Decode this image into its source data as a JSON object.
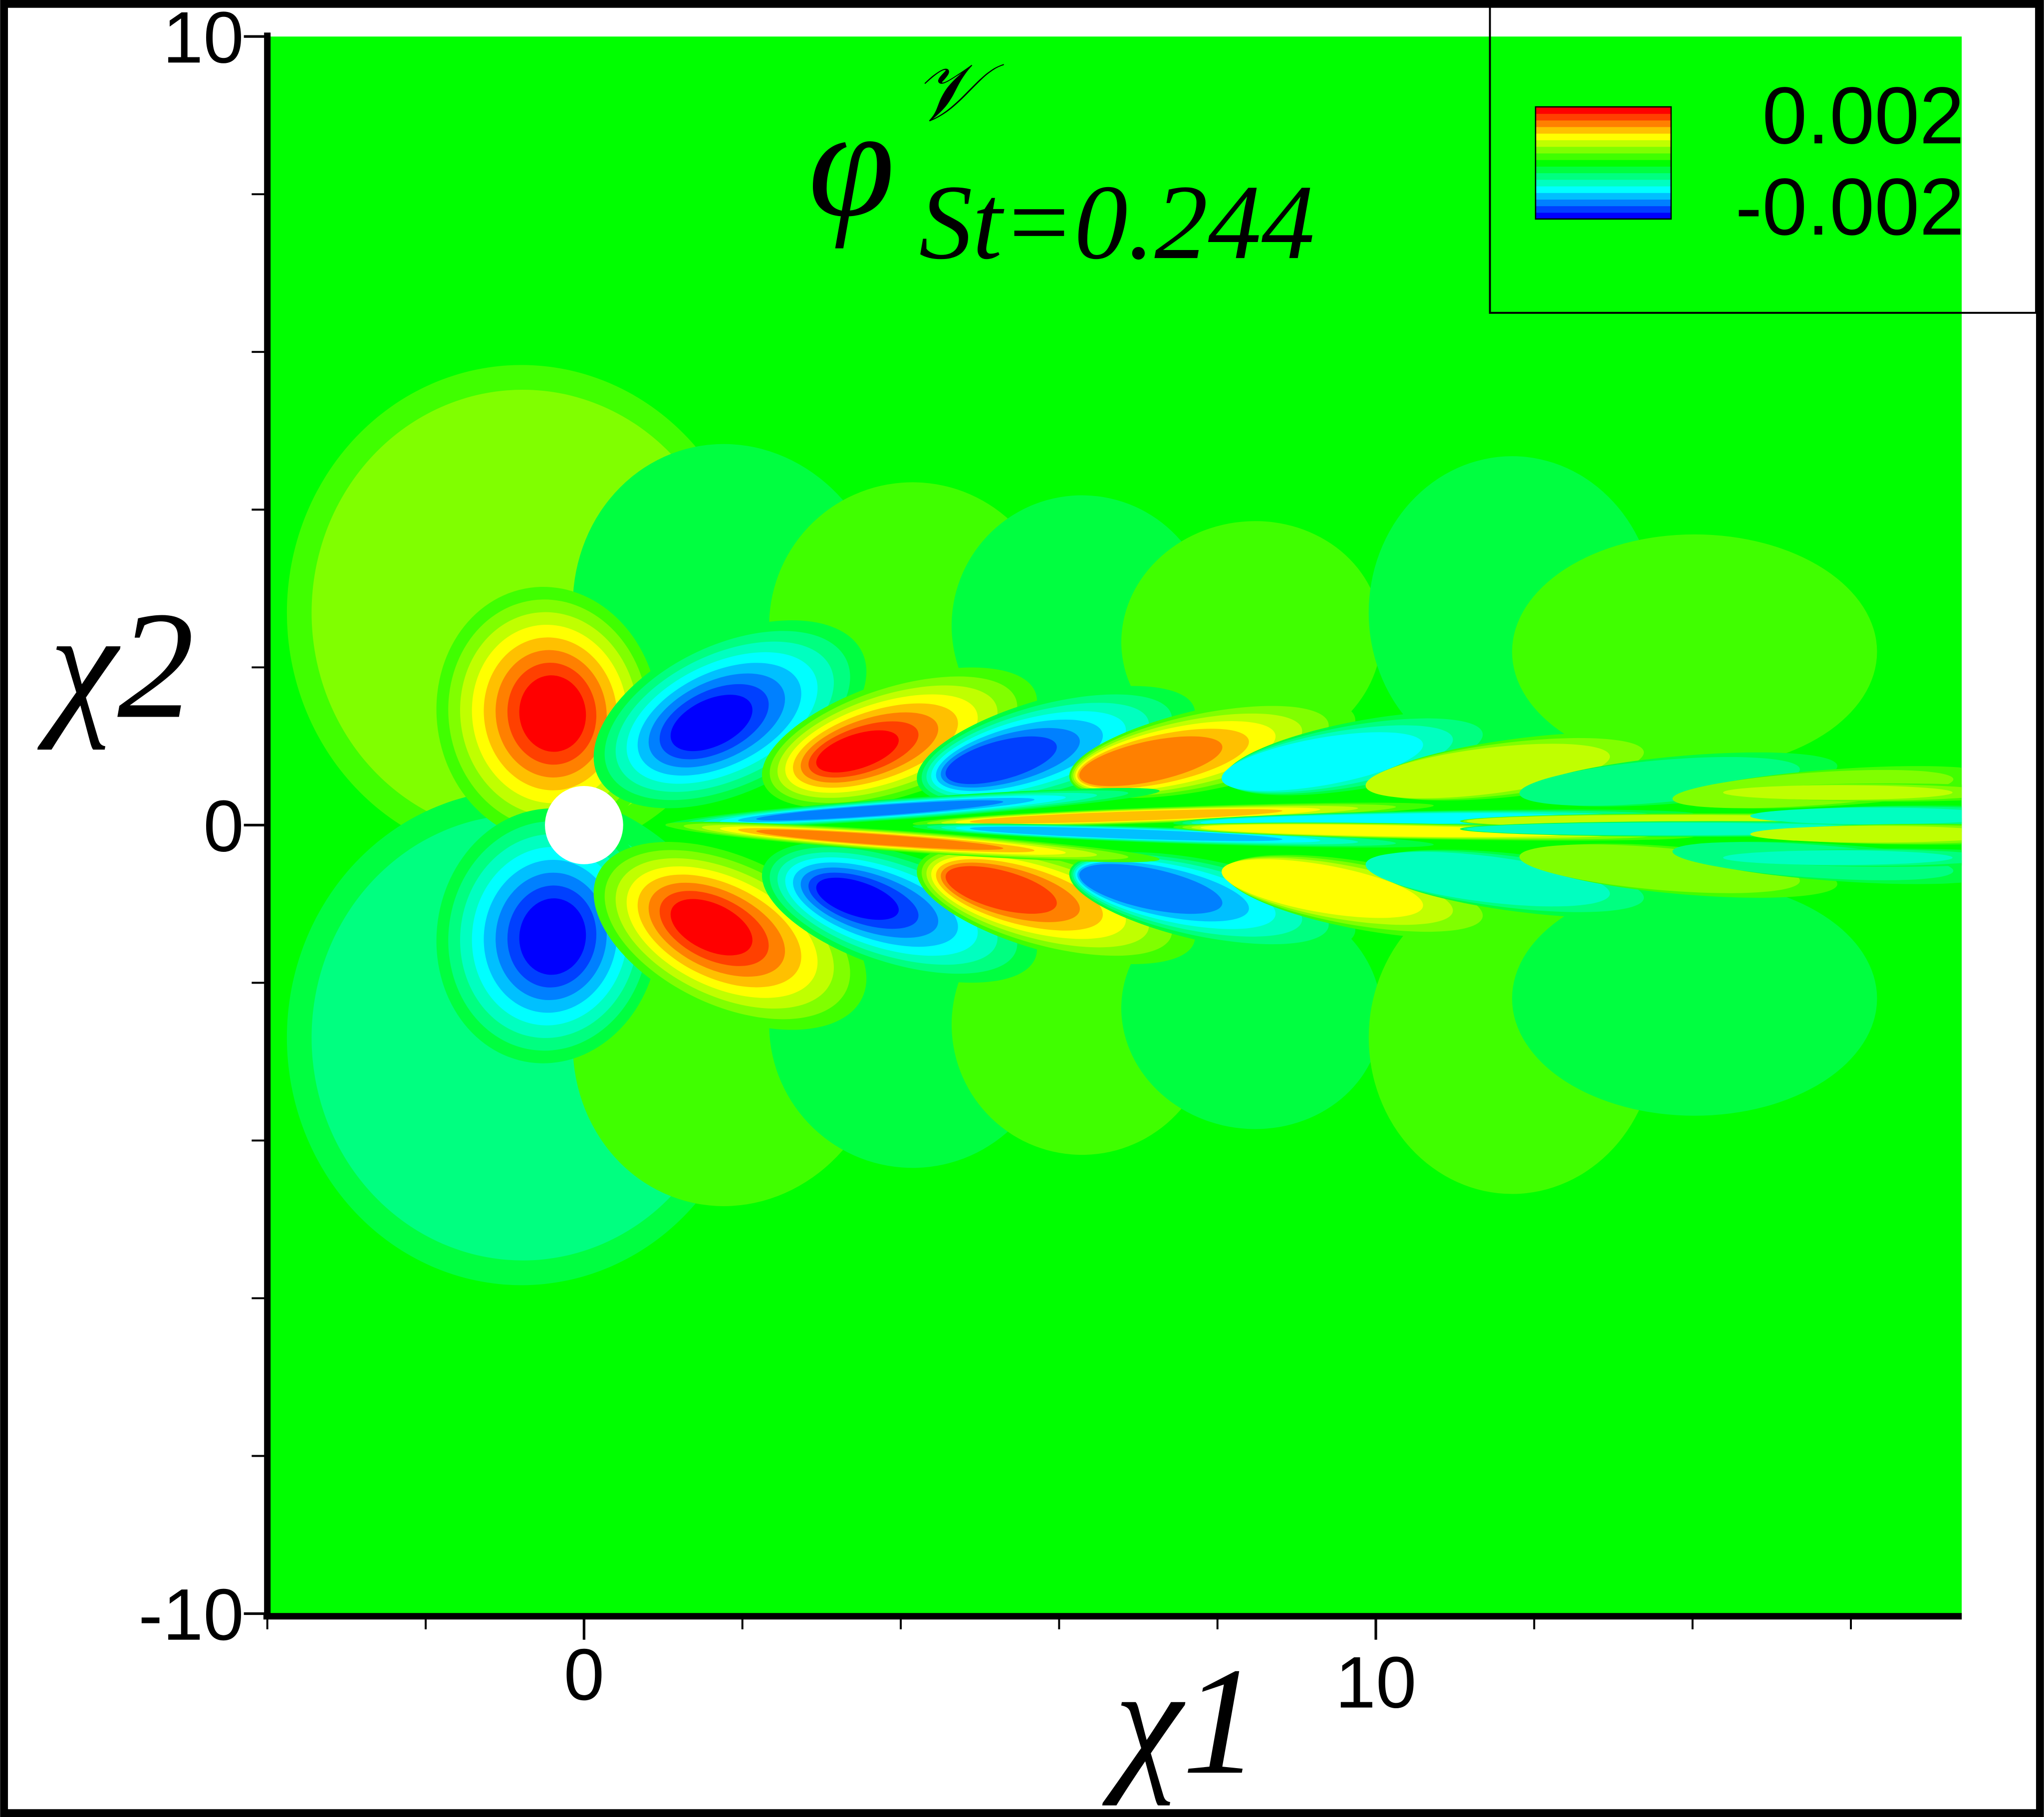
{
  "chart_data": {
    "type": "contour",
    "title": {
      "symbol": "φ",
      "superscript": "𝒱",
      "subscript": "St=0.244"
    },
    "xlabel": "χ1",
    "ylabel": "χ2",
    "xlim": [
      -4,
      17.4
    ],
    "ylim": [
      -10,
      10
    ],
    "xticks": [
      0,
      10
    ],
    "yticks": [
      -10,
      0,
      10
    ],
    "x_minor_ticks": [
      -4,
      -2,
      2,
      4,
      6,
      8,
      12,
      14,
      16
    ],
    "y_minor_ticks": [
      -8,
      -6,
      -4,
      -2,
      2,
      4,
      6,
      8
    ],
    "colorbar": {
      "clim": [
        -0.002,
        0.002
      ],
      "ticks": [
        0.002,
        -0.002
      ],
      "colors": [
        "#0000ff",
        "#0040ff",
        "#0080ff",
        "#00c0ff",
        "#00ffff",
        "#00ffc0",
        "#00ff80",
        "#00ff40",
        "#00ff00",
        "#40ff00",
        "#80ff00",
        "#c0ff00",
        "#ffff00",
        "#ffc000",
        "#ff8000",
        "#ff4000",
        "#ff0000"
      ]
    }
  }
}
